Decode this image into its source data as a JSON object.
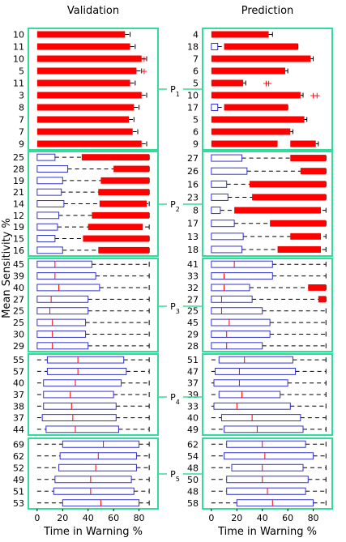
{
  "chart_data": {
    "type": "boxplot",
    "ylabel": "Mean Sensitivity %",
    "xlabel": "Time in Warning %",
    "xlim": [
      -5,
      93
    ],
    "xticks": [
      0,
      20,
      40,
      60,
      80
    ],
    "panels": [
      {
        "title": "Validation",
        "groups": [
          {
            "name": "P1",
            "rows": [
              {
                "label": "10",
                "q1": 0,
                "med": 0,
                "q3": 69,
                "whisker_hi": 73,
                "outliers": []
              },
              {
                "label": "11",
                "q1": 0,
                "med": 0,
                "q3": 73,
                "whisker_hi": 77,
                "outliers": []
              },
              {
                "label": "10",
                "q1": 0,
                "med": 0,
                "q3": 82,
                "whisker_hi": 86,
                "outliers": [
                  84
                ]
              },
              {
                "label": "5",
                "q1": 0,
                "med": 0,
                "q3": 78,
                "whisker_hi": 82,
                "outliers": [
                  84
                ]
              },
              {
                "label": "11",
                "q1": 0,
                "med": 0,
                "q3": 73,
                "whisker_hi": 77,
                "outliers": []
              },
              {
                "label": "3",
                "q1": 0,
                "med": 0,
                "q3": 82,
                "whisker_hi": 86,
                "outliers": []
              },
              {
                "label": "8",
                "q1": 0,
                "med": 0,
                "q3": 76,
                "whisker_hi": 80,
                "outliers": []
              },
              {
                "label": "7",
                "q1": 0,
                "med": 0,
                "q3": 72,
                "whisker_hi": 76,
                "outliers": []
              },
              {
                "label": "7",
                "q1": 0,
                "med": 0,
                "q3": 75,
                "whisker_hi": 79,
                "outliers": []
              },
              {
                "label": "9",
                "q1": 0,
                "med": 0,
                "q3": 82,
                "whisker_hi": 86,
                "outliers": []
              }
            ]
          },
          {
            "name": "P2",
            "rows": [
              {
                "label": "25",
                "q1": 0,
                "med": 0,
                "q3": 14,
                "whisker_hi": 88,
                "red": [
                  35,
                  88
                ]
              },
              {
                "label": "28",
                "q1": 0,
                "med": 0,
                "q3": 24,
                "whisker_hi": 88,
                "red": [
                  60,
                  88
                ]
              },
              {
                "label": "19",
                "q1": 0,
                "med": 0,
                "q3": 20,
                "whisker_hi": 88,
                "red": [
                  50,
                  88
                ]
              },
              {
                "label": "21",
                "q1": 0,
                "med": 0,
                "q3": 19,
                "whisker_hi": 88,
                "red": [
                  48,
                  88
                ]
              },
              {
                "label": "14",
                "q1": 0,
                "med": 0,
                "q3": 21,
                "whisker_hi": 88,
                "red": [
                  49,
                  86
                ]
              },
              {
                "label": "12",
                "q1": 0,
                "med": 0,
                "q3": 17,
                "whisker_hi": 88,
                "red": [
                  43,
                  88
                ]
              },
              {
                "label": "19",
                "q1": 0,
                "med": 0,
                "q3": 16,
                "whisker_hi": 88,
                "red": [
                  40,
                  83
                ]
              },
              {
                "label": "15",
                "q1": 0,
                "med": 0,
                "q3": 14,
                "whisker_hi": 88,
                "red": [
                  36,
                  88
                ]
              },
              {
                "label": "16",
                "q1": 0,
                "med": 0,
                "q3": 20,
                "whisker_hi": 88,
                "red": [
                  48,
                  88
                ]
              }
            ]
          },
          {
            "name": "P3",
            "rows": [
              {
                "label": "45",
                "q1": 0,
                "med": 14,
                "q3": 43,
                "whisker_hi": 88
              },
              {
                "label": "39",
                "q1": 0,
                "med": 14,
                "q3": 46,
                "whisker_hi": 88
              },
              {
                "label": "40",
                "q1": 0,
                "med": 17,
                "q3": 49,
                "whisker_hi": 88
              },
              {
                "label": "27",
                "q1": 0,
                "med": 11,
                "q3": 40,
                "whisker_hi": 88
              },
              {
                "label": "25",
                "q1": 0,
                "med": 10,
                "q3": 40,
                "whisker_hi": 88
              },
              {
                "label": "25",
                "q1": 0,
                "med": 12,
                "q3": 38,
                "whisker_hi": 88
              },
              {
                "label": "30",
                "q1": 0,
                "med": 12,
                "q3": 38,
                "whisker_hi": 88
              },
              {
                "label": "29",
                "q1": 0,
                "med": 12,
                "q3": 40,
                "whisker_hi": 88
              }
            ]
          },
          {
            "name": "P4",
            "rows": [
              {
                "label": "55",
                "q1": 8,
                "med": 32,
                "q3": 68,
                "whisker_hi": 88
              },
              {
                "label": "57",
                "q1": 8,
                "med": 32,
                "q3": 70,
                "whisker_hi": 88
              },
              {
                "label": "40",
                "q1": 5,
                "med": 30,
                "q3": 66,
                "whisker_hi": 88
              },
              {
                "label": "37",
                "q1": 5,
                "med": 26,
                "q3": 60,
                "whisker_hi": 88
              },
              {
                "label": "38",
                "q1": 5,
                "med": 27,
                "q3": 62,
                "whisker_hi": 88
              },
              {
                "label": "37",
                "q1": 4,
                "med": 28,
                "q3": 62,
                "whisker_hi": 88
              },
              {
                "label": "44",
                "q1": 7,
                "med": 30,
                "q3": 64,
                "whisker_hi": 88
              }
            ]
          },
          {
            "name": "P5",
            "rows": [
              {
                "label": "69",
                "q1": 20,
                "med": 52,
                "q3": 80,
                "whisker_hi": 88
              },
              {
                "label": "62",
                "q1": 18,
                "med": 48,
                "q3": 78,
                "whisker_hi": 88
              },
              {
                "label": "52",
                "q1": 17,
                "med": 46,
                "q3": 78,
                "whisker_hi": 88
              },
              {
                "label": "49",
                "q1": 14,
                "med": 42,
                "q3": 74,
                "whisker_hi": 88
              },
              {
                "label": "51",
                "q1": 13,
                "med": 42,
                "q3": 76,
                "whisker_hi": 88
              },
              {
                "label": "53",
                "q1": 20,
                "med": 50,
                "q3": 80,
                "whisker_hi": 88
              }
            ]
          }
        ]
      },
      {
        "title": "Prediction",
        "groups": [
          {
            "name": "P1",
            "rows": [
              {
                "label": "4",
                "q1": 0,
                "med": 0,
                "q3": 45,
                "whisker_hi": 48,
                "outliers": []
              },
              {
                "label": "18",
                "q1": 0,
                "med": 0,
                "q3": 5,
                "whisker_hi": 68,
                "red": [
                  10,
                  68
                ],
                "outliers": []
              },
              {
                "label": "7",
                "q1": 0,
                "med": 0,
                "q3": 78,
                "whisker_hi": 80,
                "outliers": []
              },
              {
                "label": "6",
                "q1": 0,
                "med": 0,
                "q3": 58,
                "whisker_hi": 60,
                "outliers": []
              },
              {
                "label": "5",
                "q1": 0,
                "med": 0,
                "q3": 25,
                "whisker_hi": 27,
                "outliers": [
                  43,
                  45
                ]
              },
              {
                "label": "10",
                "q1": 0,
                "med": 0,
                "q3": 70,
                "whisker_hi": 72,
                "outliers": [
                  80,
                  83
                ]
              },
              {
                "label": "17",
                "q1": 0,
                "med": 0,
                "q3": 5,
                "whisker_hi": 60,
                "red": [
                  10,
                  60
                ],
                "outliers": []
              },
              {
                "label": "5",
                "q1": 0,
                "med": 0,
                "q3": 73,
                "whisker_hi": 75,
                "outliers": []
              },
              {
                "label": "6",
                "q1": 0,
                "med": 0,
                "q3": 62,
                "whisker_hi": 64,
                "outliers": []
              },
              {
                "label": "9",
                "q1": 0,
                "med": 0,
                "q3": 82,
                "whisker_hi": 84,
                "outliers": [],
                "gap": [
                  52,
                  62
                ]
              }
            ]
          },
          {
            "name": "P2",
            "rows": [
              {
                "label": "27",
                "q1": 0,
                "med": 0,
                "q3": 24,
                "whisker_hi": 90,
                "red": [
                  62,
                  90
                ]
              },
              {
                "label": "26",
                "q1": 0,
                "med": 0,
                "q3": 28,
                "whisker_hi": 90,
                "red": [
                  70,
                  90
                ]
              },
              {
                "label": "16",
                "q1": 0,
                "med": 0,
                "q3": 12,
                "whisker_hi": 90,
                "red": [
                  30,
                  90
                ]
              },
              {
                "label": "23",
                "q1": 0,
                "med": 0,
                "q3": 13,
                "whisker_hi": 90,
                "red": [
                  32,
                  90
                ]
              },
              {
                "label": "8",
                "q1": 0,
                "med": 0,
                "q3": 7,
                "whisker_hi": 90,
                "red": [
                  18,
                  86
                ]
              },
              {
                "label": "17",
                "q1": 0,
                "med": 0,
                "q3": 18,
                "whisker_hi": 90,
                "red": [
                  46,
                  90
                ]
              },
              {
                "label": "13",
                "q1": 0,
                "med": 0,
                "q3": 25,
                "whisker_hi": 90,
                "red": [
                  62,
                  86
                ]
              },
              {
                "label": "18",
                "q1": 0,
                "med": 0,
                "q3": 24,
                "whisker_hi": 90,
                "red": [
                  52,
                  86
                ]
              }
            ]
          },
          {
            "name": "P3",
            "rows": [
              {
                "label": "41",
                "q1": 0,
                "med": 18,
                "q3": 48,
                "whisker_hi": 90
              },
              {
                "label": "33",
                "q1": 0,
                "med": 10,
                "q3": 48,
                "whisker_hi": 90
              },
              {
                "label": "32",
                "q1": 0,
                "med": 10,
                "q3": 30,
                "whisker_hi": 90,
                "red": [
                  76,
                  90
                ]
              },
              {
                "label": "27",
                "q1": 0,
                "med": 8,
                "q3": 32,
                "whisker_hi": 90,
                "red": [
                  84,
                  90
                ]
              },
              {
                "label": "25",
                "q1": 0,
                "med": 8,
                "q3": 40,
                "whisker_hi": 90
              },
              {
                "label": "45",
                "q1": 0,
                "med": 14,
                "q3": 46,
                "whisker_hi": 90
              },
              {
                "label": "29",
                "q1": 0,
                "med": 12,
                "q3": 46,
                "whisker_hi": 90
              },
              {
                "label": "28",
                "q1": 0,
                "med": 12,
                "q3": 40,
                "whisker_hi": 90
              }
            ]
          },
          {
            "name": "P4",
            "rows": [
              {
                "label": "51",
                "q1": 6,
                "med": 26,
                "q3": 64,
                "whisker_hi": 90
              },
              {
                "label": "47",
                "q1": 3,
                "med": 22,
                "q3": 66,
                "whisker_hi": 90
              },
              {
                "label": "37",
                "q1": 2,
                "med": 22,
                "q3": 60,
                "whisker_hi": 90
              },
              {
                "label": "39",
                "q1": 6,
                "med": 24,
                "q3": 54,
                "whisker_hi": 90
              },
              {
                "label": "33",
                "q1": 2,
                "med": 20,
                "q3": 62,
                "whisker_hi": 90
              },
              {
                "label": "40",
                "q1": 8,
                "med": 32,
                "q3": 70,
                "whisker_hi": 90
              },
              {
                "label": "49",
                "q1": 10,
                "med": 36,
                "q3": 72,
                "whisker_hi": 90
              }
            ]
          },
          {
            "name": "P5",
            "rows": [
              {
                "label": "62",
                "q1": 12,
                "med": 40,
                "q3": 74,
                "whisker_hi": 90
              },
              {
                "label": "54",
                "q1": 10,
                "med": 42,
                "q3": 80,
                "whisker_hi": 90
              },
              {
                "label": "48",
                "q1": 16,
                "med": 40,
                "q3": 72,
                "whisker_hi": 90
              },
              {
                "label": "50",
                "q1": 12,
                "med": 40,
                "q3": 76,
                "whisker_hi": 90
              },
              {
                "label": "48",
                "q1": 12,
                "med": 44,
                "q3": 74,
                "whisker_hi": 90
              },
              {
                "label": "58",
                "q1": 20,
                "med": 48,
                "q3": 80,
                "whisker_hi": 90
              }
            ]
          }
        ]
      }
    ],
    "colors": {
      "red": "#ff0000",
      "box": "#3333cc",
      "median": "#ff0000",
      "group_frame": "#33dd99",
      "whisker": "#000000"
    }
  }
}
